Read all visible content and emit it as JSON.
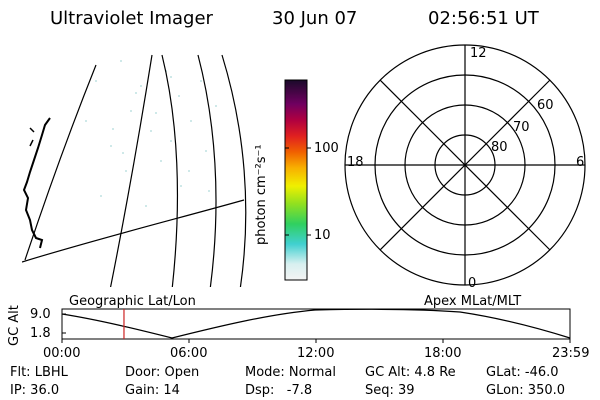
{
  "header": {
    "instrument": "Ultraviolet Imager",
    "date": "30 Jun 07",
    "time": "02:56:51 UT"
  },
  "colorbar": {
    "ticks": [
      "100",
      "10"
    ],
    "unit_label": "photon cm⁻²s⁻¹"
  },
  "polar_plot": {
    "mlt_labels": [
      "12",
      "18",
      "6",
      "0"
    ],
    "mlat_labels": [
      "60",
      "70",
      "80"
    ]
  },
  "orbit_panel": {
    "left_caption": "Geographic Lat/Lon",
    "right_caption": "Apex MLat/MLT",
    "yaxis_title": "GC Alt",
    "y_ticks": [
      "9.0",
      "1.8"
    ],
    "x_ticks": [
      "00:00",
      "06:00",
      "12:00",
      "18:00",
      "23:59"
    ],
    "current_time_fraction": 0.122
  },
  "status": {
    "filter": "Flt: LBHL",
    "door": "Door: Open",
    "mode": "Mode: Normal",
    "gc_alt": "GC Alt: 4.8 Re",
    "glat": "GLat: -46.0",
    "ip": "IP: 36.0",
    "gain": "Gain: 14",
    "dsp": "Dsp:   -7.8",
    "seq": "Seq: 39",
    "glon": "GLon: 350.0"
  },
  "colors": {
    "marker": "#cc2222",
    "colorbar_top": "#1a0a2a",
    "colorbar_bottom": "#f4f4f4"
  }
}
